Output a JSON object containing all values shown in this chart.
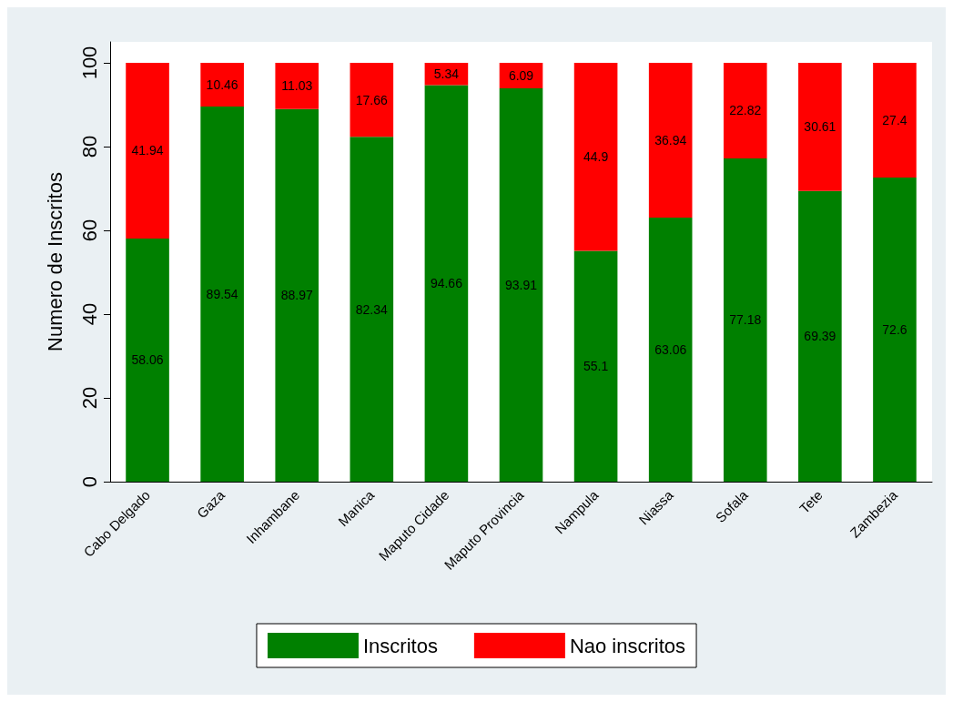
{
  "chart_data": {
    "type": "bar",
    "stacked": true,
    "ylabel": "Numero de Inscritos",
    "categories": [
      "Cabo Delgado",
      "Gaza",
      "Inhambane",
      "Manica",
      "Maputo Cidade",
      "Maputo Provincia",
      "Nampula",
      "Niassa",
      "Sofala",
      "Tete",
      "Zambezia"
    ],
    "series": [
      {
        "name": "Inscritos",
        "color": "#008000",
        "values": [
          58.06,
          89.54,
          88.97,
          82.34,
          94.66,
          93.91,
          55.1,
          63.06,
          77.18,
          69.39,
          72.6
        ]
      },
      {
        "name": "Nao inscritos",
        "color": "#ff0000",
        "values": [
          41.94,
          10.46,
          11.03,
          17.66,
          5.34,
          6.09,
          44.9,
          36.94,
          22.82,
          30.61,
          27.4
        ]
      }
    ],
    "ylim": [
      0,
      105
    ],
    "yticks": [
      0,
      20,
      40,
      60,
      80,
      100
    ],
    "grid": false,
    "legend": "bottom",
    "data_labels": true
  }
}
